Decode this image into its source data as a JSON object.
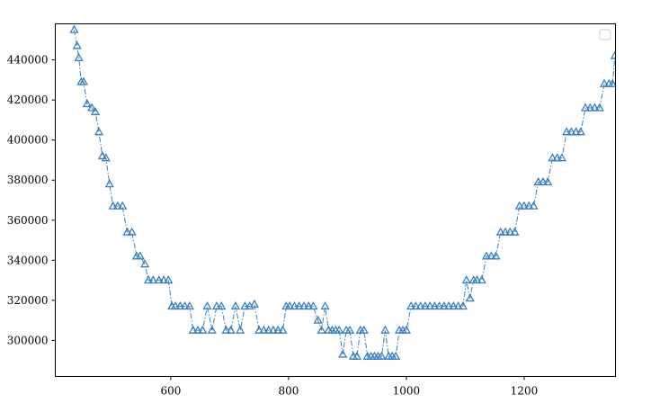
{
  "chart_data": {
    "type": "line",
    "title": "",
    "xlabel": "",
    "ylabel": "",
    "xlim": [
      404,
      1355
    ],
    "ylim": [
      282000,
      458000
    ],
    "x_ticks": [
      600,
      800,
      1000,
      1200
    ],
    "y_ticks": [
      300000,
      320000,
      340000,
      360000,
      380000,
      400000,
      420000,
      440000
    ],
    "grid": false,
    "legend": {
      "placement": "top-right",
      "entries": []
    },
    "series": [
      {
        "marker": "open-triangle",
        "line_style": "dash-dot",
        "color": "#3a7fbd",
        "x": [
          436,
          441,
          444,
          448,
          452,
          458,
          466,
          472,
          478,
          484,
          490,
          496,
          502,
          510,
          518,
          526,
          534,
          542,
          548,
          556,
          562,
          570,
          580,
          588,
          596,
          602,
          608,
          616,
          624,
          632,
          638,
          646,
          654,
          662,
          670,
          678,
          686,
          694,
          702,
          710,
          718,
          726,
          734,
          742,
          750,
          758,
          766,
          774,
          782,
          790,
          796,
          802,
          810,
          818,
          826,
          834,
          842,
          850,
          856,
          862,
          868,
          874,
          880,
          886,
          892,
          898,
          904,
          910,
          916,
          922,
          928,
          934,
          940,
          946,
          952,
          958,
          964,
          970,
          976,
          982,
          988,
          994,
          1000,
          1008,
          1016,
          1024,
          1032,
          1040,
          1048,
          1056,
          1064,
          1072,
          1080,
          1088,
          1096,
          1102,
          1108,
          1114,
          1120,
          1128,
          1136,
          1144,
          1152,
          1160,
          1168,
          1176,
          1184,
          1192,
          1200,
          1208,
          1216,
          1224,
          1232,
          1240,
          1248,
          1256,
          1264,
          1272,
          1280,
          1288,
          1296,
          1304,
          1312,
          1320,
          1328,
          1336,
          1344,
          1350,
          1354
        ],
        "y": [
          455000,
          447000,
          441000,
          429000,
          429000,
          418000,
          416000,
          414000,
          404000,
          392000,
          391000,
          378000,
          367000,
          367000,
          367000,
          354000,
          354000,
          342000,
          342000,
          338000,
          330000,
          330000,
          330000,
          330000,
          330000,
          317000,
          317000,
          317000,
          317000,
          317000,
          305000,
          305000,
          305000,
          317000,
          305000,
          317000,
          317000,
          305000,
          305000,
          317000,
          305000,
          317000,
          317000,
          318000,
          305000,
          305000,
          305000,
          305000,
          305000,
          305000,
          317000,
          317000,
          317000,
          317000,
          317000,
          317000,
          317000,
          310000,
          305000,
          317000,
          305000,
          305000,
          305000,
          305000,
          293000,
          305000,
          305000,
          292000,
          292000,
          305000,
          305000,
          292000,
          292000,
          292000,
          292000,
          292000,
          305000,
          292000,
          292000,
          292000,
          305000,
          305000,
          305000,
          317000,
          317000,
          317000,
          317000,
          317000,
          317000,
          317000,
          317000,
          317000,
          317000,
          317000,
          317000,
          330000,
          321000,
          330000,
          330000,
          330000,
          342000,
          342000,
          342000,
          354000,
          354000,
          354000,
          354000,
          367000,
          367000,
          367000,
          367000,
          379000,
          379000,
          379000,
          391000,
          391000,
          391000,
          404000,
          404000,
          404000,
          404000,
          416000,
          416000,
          416000,
          416000,
          428000,
          428000,
          428000,
          442000
        ]
      }
    ]
  }
}
